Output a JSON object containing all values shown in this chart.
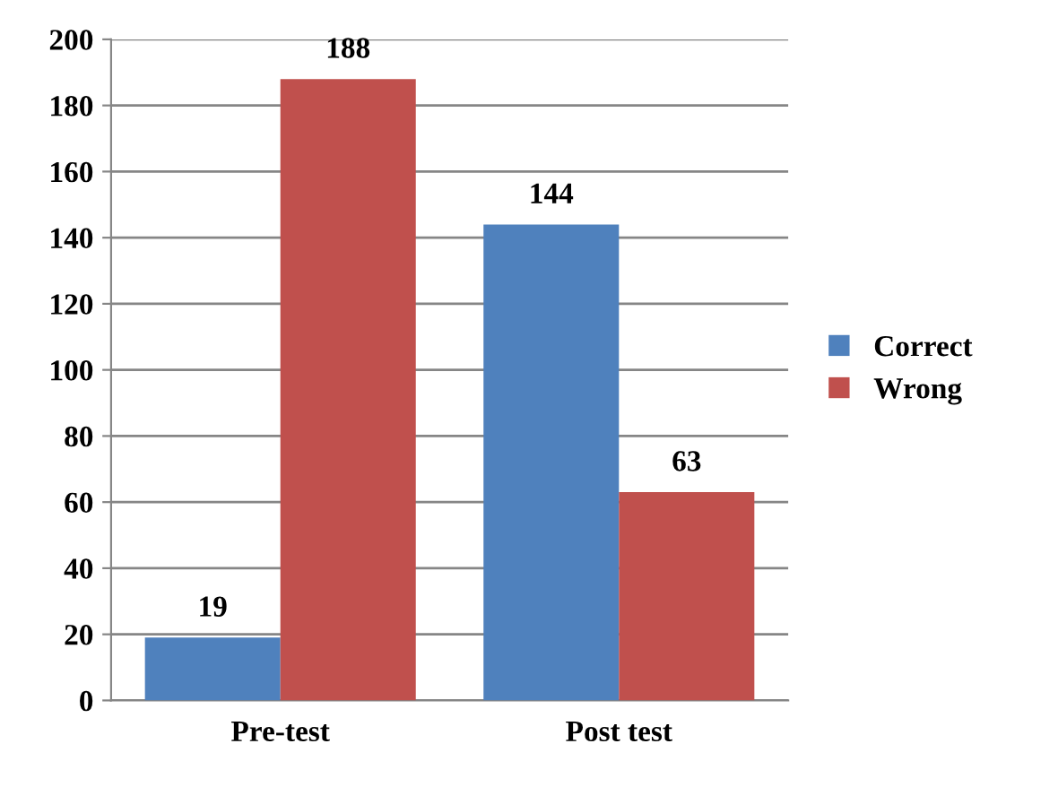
{
  "chart_data": {
    "type": "bar",
    "categories": [
      "Pre-test",
      "Post test"
    ],
    "series": [
      {
        "name": "Correct",
        "color": "#4f81bd",
        "values": [
          19,
          144
        ]
      },
      {
        "name": "Wrong",
        "color": "#c0504d",
        "values": [
          188,
          63
        ]
      }
    ],
    "ylim": [
      0,
      200
    ],
    "yticks": [
      0,
      20,
      40,
      60,
      80,
      100,
      120,
      140,
      160,
      180,
      200
    ],
    "grid": "y",
    "legend": "right",
    "data_labels": true
  }
}
